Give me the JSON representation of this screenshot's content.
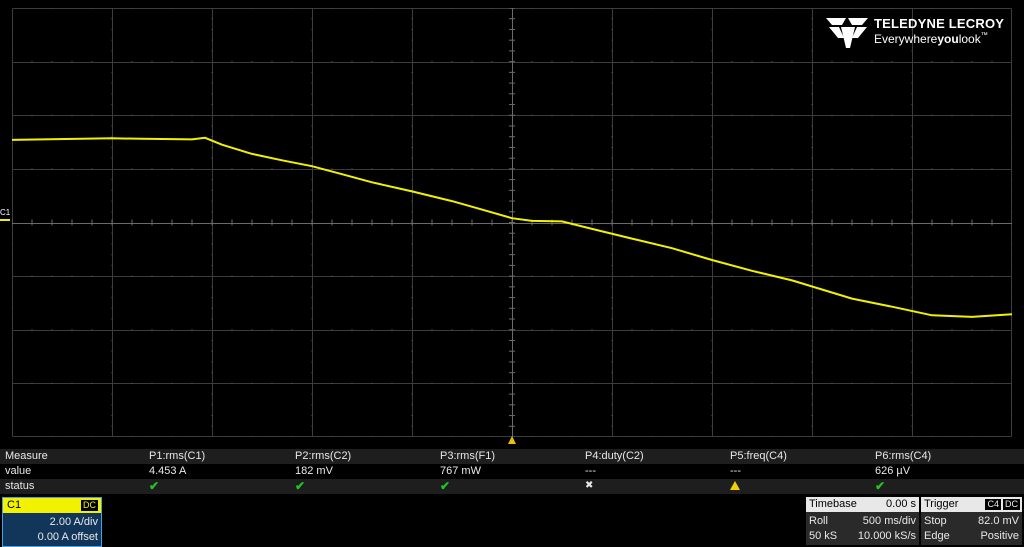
{
  "brand": {
    "name": "TELEDYNE LECROY",
    "tagline_pre": "Everywhere",
    "tagline_bold": "you",
    "tagline_post": "look",
    "tm": "™"
  },
  "channel_marker": "C1",
  "waveform": {
    "color": "#f2f200",
    "units_note": "vertical divisions from center (+ up), horizontal divisions from left",
    "trace": [
      [
        0,
        1.54
      ],
      [
        1,
        1.57
      ],
      [
        1.3,
        1.56
      ],
      [
        1.8,
        1.55
      ],
      [
        1.93,
        1.58
      ],
      [
        2.1,
        1.45
      ],
      [
        2.4,
        1.28
      ],
      [
        2.7,
        1.16
      ],
      [
        3.0,
        1.05
      ],
      [
        3.3,
        0.9
      ],
      [
        3.6,
        0.75
      ],
      [
        4.0,
        0.58
      ],
      [
        4.4,
        0.4
      ],
      [
        4.7,
        0.24
      ],
      [
        5.0,
        0.08
      ],
      [
        5.2,
        0.03
      ],
      [
        5.5,
        0.02
      ],
      [
        5.8,
        -0.12
      ],
      [
        6.2,
        -0.3
      ],
      [
        6.6,
        -0.48
      ],
      [
        7.0,
        -0.7
      ],
      [
        7.4,
        -0.9
      ],
      [
        7.8,
        -1.08
      ],
      [
        8.1,
        -1.25
      ],
      [
        8.4,
        -1.42
      ],
      [
        8.8,
        -1.57
      ],
      [
        9.2,
        -1.73
      ],
      [
        9.6,
        -1.76
      ],
      [
        10.0,
        -1.71
      ]
    ]
  },
  "measure": {
    "row_labels": [
      "Measure",
      "value",
      "status"
    ],
    "params": [
      {
        "name": "P1:rms(C1)",
        "value": "4.453 A",
        "status": "ok"
      },
      {
        "name": "P2:rms(C2)",
        "value": "182 mV",
        "status": "ok"
      },
      {
        "name": "P3:rms(F1)",
        "value": "767 mW",
        "status": "ok"
      },
      {
        "name": "P4:duty(C2)",
        "value": "---",
        "status": "none"
      },
      {
        "name": "P5:freq(C4)",
        "value": "---",
        "status": "warning"
      },
      {
        "name": "P6:rms(C4)",
        "value": "626 µV",
        "status": "ok"
      }
    ],
    "check_glyph": "✔",
    "none_glyph": "✖"
  },
  "channel": {
    "name": "C1",
    "coupling": "DC",
    "vdiv": "2.00 A/div",
    "offset": "0.00 A offset",
    "color": "#f2f200"
  },
  "timebase": {
    "label": "Timebase",
    "delay": "0.00 s",
    "mode": "Roll",
    "tdiv": "500 ms/div",
    "samples": "50 kS",
    "rate": "10.000 kS/s"
  },
  "trigger": {
    "label": "Trigger",
    "source": "C4",
    "coupling": "DC",
    "mode": "Stop",
    "level": "82.0 mV",
    "type": "Edge",
    "slope": "Positive"
  }
}
